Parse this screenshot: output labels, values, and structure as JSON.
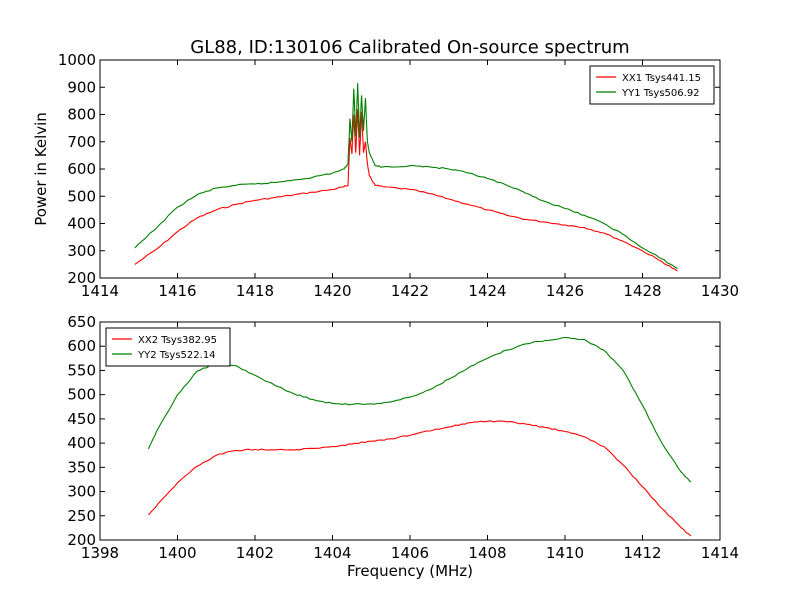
{
  "chart_data": [
    {
      "type": "line",
      "title": "GL88, ID:130106 Calibrated On-source spectrum",
      "xlabel": "",
      "ylabel": "Power in Kelvin",
      "xlim": [
        1414,
        1430
      ],
      "ylim": [
        200,
        1000
      ],
      "xticks": [
        "1414",
        "1416",
        "1418",
        "1420",
        "1422",
        "1424",
        "1426",
        "1428",
        "1430"
      ],
      "yticks": [
        "200",
        "300",
        "400",
        "500",
        "600",
        "700",
        "800",
        "900",
        "1000"
      ],
      "legend_position": "top-right",
      "grid": false,
      "series": [
        {
          "name": "XX1 Tsys441.15",
          "color": "#ff0000",
          "x": [
            1414.9,
            1415.5,
            1416,
            1416.5,
            1417,
            1417.5,
            1418,
            1418.5,
            1419,
            1419.5,
            1420,
            1420.3,
            1420.4,
            1420.45,
            1420.5,
            1420.55,
            1420.6,
            1420.65,
            1420.7,
            1420.75,
            1420.8,
            1420.85,
            1420.9,
            1420.95,
            1421.1,
            1421.3,
            1422,
            1422.5,
            1423,
            1423.5,
            1424,
            1424.5,
            1425,
            1425.5,
            1426,
            1426.5,
            1427,
            1427.5,
            1428,
            1428.5,
            1428.9
          ],
          "y": [
            250,
            310,
            370,
            420,
            450,
            470,
            485,
            495,
            505,
            515,
            525,
            535,
            540,
            715,
            655,
            800,
            660,
            820,
            650,
            810,
            660,
            700,
            620,
            575,
            540,
            535,
            525,
            510,
            490,
            470,
            450,
            430,
            415,
            405,
            395,
            385,
            365,
            335,
            300,
            260,
            225
          ]
        },
        {
          "name": "YY1 Tsys506.92",
          "color": "#008000",
          "x": [
            1414.9,
            1415.5,
            1416,
            1416.5,
            1417,
            1417.5,
            1418,
            1418.5,
            1419,
            1419.5,
            1420,
            1420.3,
            1420.4,
            1420.45,
            1420.5,
            1420.55,
            1420.6,
            1420.65,
            1420.7,
            1420.75,
            1420.8,
            1420.85,
            1420.9,
            1420.95,
            1421.1,
            1421.3,
            1422,
            1422.5,
            1423,
            1423.5,
            1424,
            1424.5,
            1425,
            1425.5,
            1426,
            1426.5,
            1427,
            1427.5,
            1428,
            1428.5,
            1428.9
          ],
          "y": [
            310,
            390,
            460,
            505,
            530,
            540,
            545,
            550,
            560,
            570,
            585,
            600,
            620,
            785,
            700,
            895,
            720,
            915,
            715,
            870,
            740,
            860,
            700,
            660,
            612,
            608,
            612,
            608,
            600,
            585,
            565,
            540,
            510,
            480,
            455,
            430,
            400,
            360,
            310,
            270,
            235
          ]
        }
      ]
    },
    {
      "type": "line",
      "title": "",
      "xlabel": "Frequency (MHz)",
      "ylabel": "",
      "xlim": [
        1398,
        1414
      ],
      "ylim": [
        200,
        650
      ],
      "xticks": [
        "1398",
        "1400",
        "1402",
        "1404",
        "1406",
        "1408",
        "1410",
        "1412",
        "1414"
      ],
      "yticks": [
        "200",
        "250",
        "300",
        "350",
        "400",
        "450",
        "500",
        "550",
        "600",
        "650"
      ],
      "legend_position": "top-left",
      "grid": false,
      "series": [
        {
          "name": "XX2 Tsys382.95",
          "color": "#ff0000",
          "x": [
            1399.25,
            1399.5,
            1400,
            1400.5,
            1401,
            1401.5,
            1402,
            1402.5,
            1403,
            1403.5,
            1404,
            1404.5,
            1405,
            1405.5,
            1406,
            1406.5,
            1407,
            1407.5,
            1408,
            1408.5,
            1409,
            1409.5,
            1410,
            1410.5,
            1411,
            1411.5,
            1412,
            1412.5,
            1413,
            1413.25
          ],
          "y": [
            252,
            275,
            318,
            352,
            375,
            385,
            387,
            386,
            386,
            389,
            393,
            398,
            404,
            409,
            416,
            425,
            433,
            442,
            445,
            444,
            439,
            432,
            424,
            413,
            393,
            355,
            310,
            265,
            225,
            208
          ]
        },
        {
          "name": "YY2 Tsys522.14",
          "color": "#008000",
          "x": [
            1399.25,
            1399.5,
            1400,
            1400.5,
            1401,
            1401.5,
            1402,
            1402.5,
            1403,
            1403.5,
            1404,
            1404.5,
            1405,
            1405.5,
            1406,
            1406.5,
            1407,
            1407.5,
            1408,
            1408.5,
            1409,
            1409.5,
            1410,
            1410.5,
            1411,
            1411.5,
            1412,
            1412.5,
            1413,
            1413.25
          ],
          "y": [
            388,
            430,
            500,
            548,
            565,
            560,
            540,
            520,
            502,
            490,
            482,
            480,
            481,
            485,
            495,
            510,
            532,
            555,
            575,
            592,
            605,
            612,
            618,
            614,
            592,
            550,
            478,
            400,
            340,
            320
          ]
        }
      ]
    }
  ]
}
